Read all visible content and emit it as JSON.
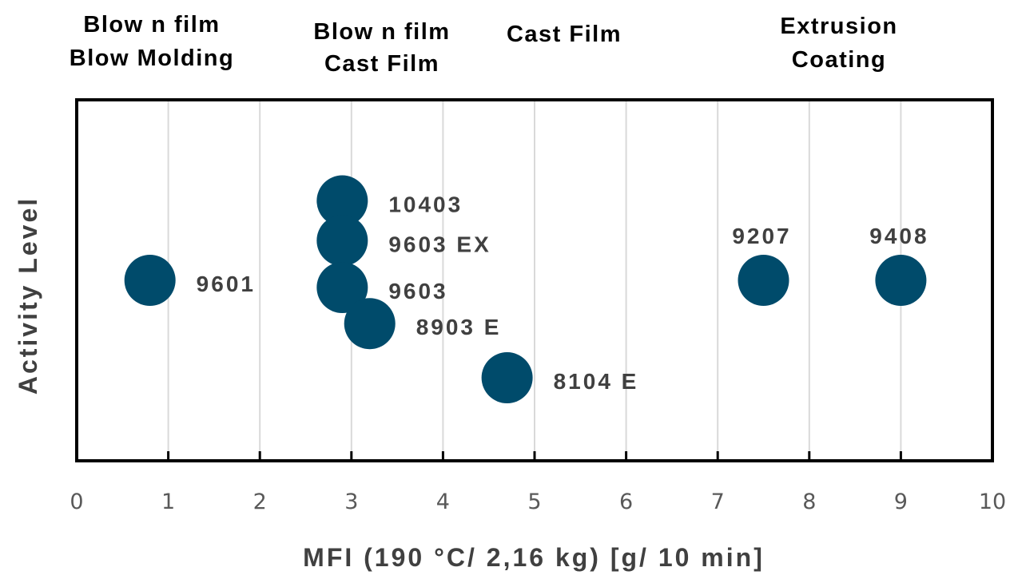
{
  "chart_data": {
    "type": "scatter",
    "title": "",
    "xlabel": "MFI (190 °C/ 2,16 kg) [g/ 10 min]",
    "ylabel": "Activity Level",
    "xlim": [
      0,
      10
    ],
    "xticks": [
      0,
      1,
      2,
      3,
      4,
      5,
      6,
      7,
      8,
      9,
      10
    ],
    "ylim": [
      0,
      10
    ],
    "grid": "vertical",
    "marker_color": "#004b6b",
    "points": [
      {
        "label": "9601",
        "x": 0.8,
        "y": 5.0
      },
      {
        "label": "10403",
        "x": 2.9,
        "y": 7.2
      },
      {
        "label": "9603 EX",
        "x": 2.9,
        "y": 6.1
      },
      {
        "label": "9603",
        "x": 2.9,
        "y": 4.8
      },
      {
        "label": "8903 E",
        "x": 3.2,
        "y": 3.8
      },
      {
        "label": "8104 E",
        "x": 4.7,
        "y": 2.3
      },
      {
        "label": "9207",
        "x": 7.5,
        "y": 5.0
      },
      {
        "label": "9408",
        "x": 9.0,
        "y": 5.0
      }
    ],
    "categories": [
      {
        "line1": "Blow n film",
        "line2": "Blow Molding"
      },
      {
        "line1": "Blow n film",
        "line2": "Cast Film"
      },
      {
        "line1": "Cast Film",
        "line2": ""
      },
      {
        "line1": "Extrusion",
        "line2": "Coating"
      }
    ]
  }
}
